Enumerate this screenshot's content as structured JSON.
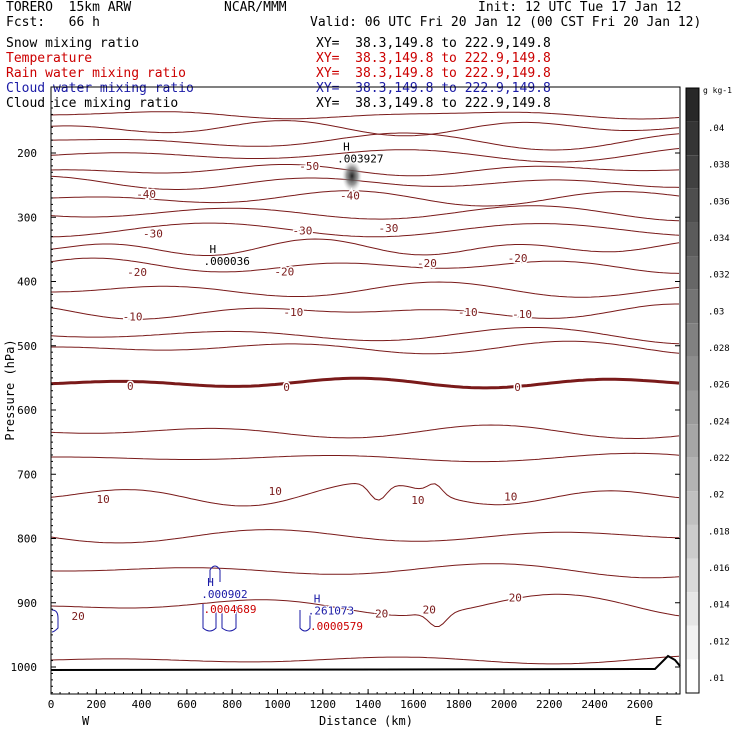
{
  "header": {
    "model": "TORERO  15km ARW",
    "org": "NCAR/MMM",
    "init": "Init: 12 UTC Tue 17 Jan 12",
    "fcst": "Fcst:   66 h",
    "valid": "Valid: 06 UTC Fri 20 Jan 12 (00 CST Fri 20 Jan 12)"
  },
  "fields": [
    {
      "name": "Snow mixing ratio",
      "xy": "XY=  38.3,149.8 to 222.9,149.8",
      "color": "#000000"
    },
    {
      "name": "Temperature",
      "xy": "XY=  38.3,149.8 to 222.9,149.8",
      "color": "#cc0000"
    },
    {
      "name": "Rain water mixing ratio",
      "xy": "XY=  38.3,149.8 to 222.9,149.8",
      "color": "#cc0000"
    },
    {
      "name": "Cloud water mixing ratio",
      "xy": "XY=  38.3,149.8 to 222.9,149.8",
      "color": "#1a1aa6"
    },
    {
      "name": "Cloud ice mixing ratio",
      "xy": "XY=  38.3,149.8 to 222.9,149.8",
      "color": "#000000"
    }
  ],
  "chart_data": {
    "type": "line",
    "xlabel": "Distance (km)",
    "ylabel": "Pressure (hPa)",
    "x_ticks": [
      0,
      200,
      400,
      600,
      800,
      1000,
      1200,
      1400,
      1600,
      1800,
      2000,
      2200,
      2400,
      2600
    ],
    "y_ticks": [
      200,
      300,
      400,
      500,
      600,
      700,
      800,
      900,
      1000
    ],
    "xlim": [
      0,
      2780
    ],
    "ylim": [
      1050,
      100
    ],
    "x_end_labels": {
      "left": "W",
      "right": "E"
    },
    "colorbar": {
      "unit": "g kg-1",
      "ticks": [
        ".01",
        ".012",
        ".014",
        ".016",
        ".018",
        ".02",
        ".022",
        ".024",
        ".026",
        ".028",
        ".03",
        ".032",
        ".034",
        ".036",
        ".038",
        ".04"
      ]
    },
    "isotherm_labels": [
      {
        "text": "-50",
        "x": 1140,
        "p": 222
      },
      {
        "text": "-40",
        "x": 420,
        "p": 265
      },
      {
        "text": "-40",
        "x": 1320,
        "p": 268
      },
      {
        "text": "-30",
        "x": 450,
        "p": 327
      },
      {
        "text": "-30",
        "x": 1110,
        "p": 322
      },
      {
        "text": "-30",
        "x": 1490,
        "p": 318
      },
      {
        "text": "-20",
        "x": 380,
        "p": 387
      },
      {
        "text": "-20",
        "x": 1030,
        "p": 386
      },
      {
        "text": "-20",
        "x": 1660,
        "p": 373
      },
      {
        "text": "-20",
        "x": 2060,
        "p": 365
      },
      {
        "text": "-10",
        "x": 360,
        "p": 456
      },
      {
        "text": "-10",
        "x": 1070,
        "p": 449
      },
      {
        "text": "-10",
        "x": 1840,
        "p": 449
      },
      {
        "text": "-10",
        "x": 2080,
        "p": 452
      },
      {
        "text": "0",
        "x": 350,
        "p": 564
      },
      {
        "text": "0",
        "x": 1040,
        "p": 566
      },
      {
        "text": "0",
        "x": 2060,
        "p": 566
      },
      {
        "text": "10",
        "x": 230,
        "p": 740
      },
      {
        "text": "10",
        "x": 990,
        "p": 728
      },
      {
        "text": "10",
        "x": 1620,
        "p": 742
      },
      {
        "text": "10",
        "x": 2030,
        "p": 736
      },
      {
        "text": "20",
        "x": 120,
        "p": 922
      },
      {
        "text": "20",
        "x": 1460,
        "p": 918
      },
      {
        "text": "20",
        "x": 1670,
        "p": 912
      },
      {
        "text": "20",
        "x": 2050,
        "p": 893
      }
    ],
    "extrema": [
      {
        "label": "H",
        "value": ".003927",
        "x": 1290,
        "p": 210,
        "color": "#000000"
      },
      {
        "label": "H",
        "value": ".000036",
        "x": 700,
        "p": 370,
        "color": "#000000"
      },
      {
        "label": "H",
        "value": ".000902",
        "x": 690,
        "p": 888,
        "color": "#1a1aa6"
      },
      {
        "label": "",
        "value": ".0004689",
        "x": 700,
        "p": 911,
        "color": "#cc0000"
      },
      {
        "label": "H",
        "value": ".261073",
        "x": 1160,
        "p": 914,
        "color": "#1a1aa6"
      },
      {
        "label": "",
        "value": ".0000579",
        "x": 1170,
        "p": 938,
        "color": "#cc0000"
      }
    ]
  }
}
